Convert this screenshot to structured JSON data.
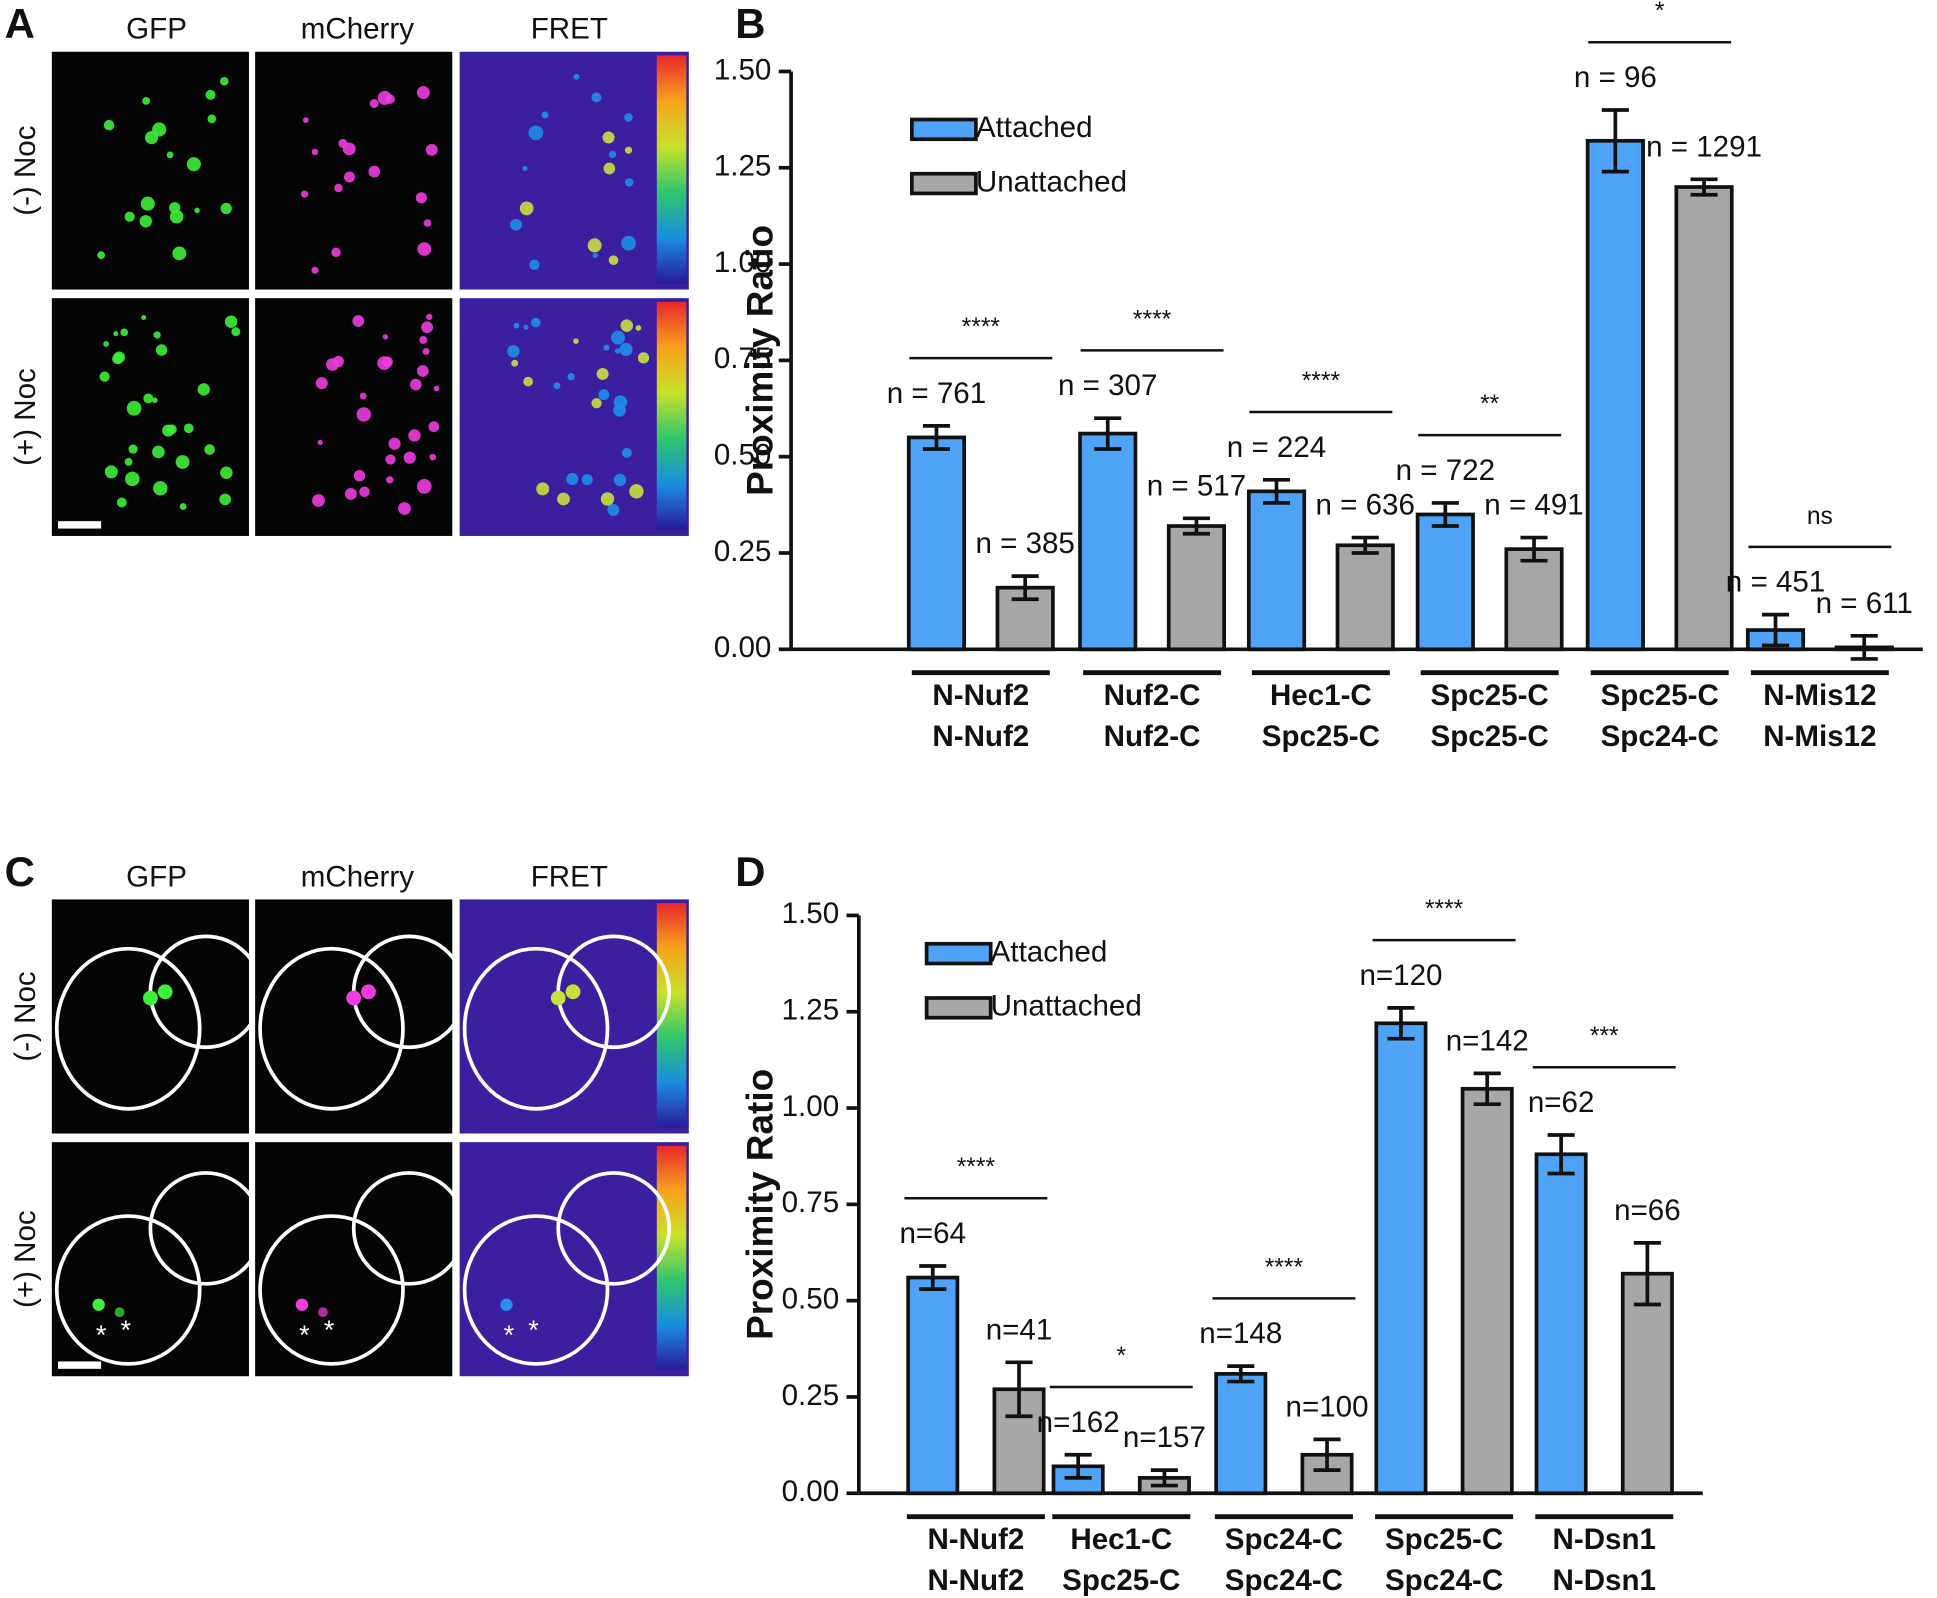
{
  "image_panels": [
    {
      "label": "A",
      "columns": [
        "GFP",
        "mCherry",
        "FRET"
      ],
      "rows": [
        "(-) Noc",
        "(+) Noc"
      ]
    },
    {
      "label": "C",
      "columns": [
        "GFP",
        "mCherry",
        "FRET"
      ],
      "rows": [
        "(-) Noc",
        "(+) Noc"
      ]
    }
  ],
  "chart_data": [
    {
      "type": "bar",
      "panel": "B",
      "ylabel": "Proximity Ratio",
      "categories": [
        [
          "N-Nuf2",
          "N-Nuf2"
        ],
        [
          "Nuf2-C",
          "Nuf2-C"
        ],
        [
          "Hec1-C",
          "Spc25-C"
        ],
        [
          "Spc25-C",
          "Spc25-C"
        ],
        [
          "Spc25-C",
          "Spc24-C"
        ],
        [
          "N-Mis12",
          "N-Mis12"
        ]
      ],
      "series": [
        {
          "name": "Attached",
          "color": "#4fa3f7",
          "values": [
            0.55,
            0.56,
            0.41,
            0.35,
            1.32,
            0.05
          ],
          "errors": [
            0.03,
            0.04,
            0.03,
            0.03,
            0.08,
            0.04
          ],
          "n_labels": [
            "n = 761",
            "n = 307",
            "n = 224",
            "n = 722",
            "n = 96",
            "n = 451"
          ]
        },
        {
          "name": "Unattached",
          "color": "#a7a7a7",
          "values": [
            0.16,
            0.32,
            0.27,
            0.26,
            1.2,
            0.005
          ],
          "errors": [
            0.03,
            0.02,
            0.02,
            0.03,
            0.02,
            0.03
          ],
          "n_labels": [
            "n = 385",
            "n = 517",
            "n = 636",
            "n = 491",
            "n = 1291",
            "n = 611"
          ]
        }
      ],
      "significance": [
        "****",
        "****",
        "****",
        "**",
        "*",
        "ns"
      ],
      "ylim": [
        0,
        1.5
      ],
      "yticks": [
        {
          "value": 0,
          "label": "0.00"
        },
        {
          "value": 0.25,
          "label": "0.25"
        },
        {
          "value": 0.5,
          "label": "0.50"
        },
        {
          "value": 0.75,
          "label": "0.75"
        },
        {
          "value": 1,
          "label": "1.00"
        },
        {
          "value": 1.25,
          "label": "1.25"
        },
        {
          "value": 1.5,
          "label": "1.50"
        }
      ],
      "legend": "upper left"
    },
    {
      "type": "bar",
      "panel": "D",
      "ylabel": "Proximity Ratio",
      "categories": [
        [
          "N-Nuf2",
          "N-Nuf2"
        ],
        [
          "Hec1-C",
          "Spc25-C"
        ],
        [
          "Spc24-C",
          "Spc24-C"
        ],
        [
          "Spc25-C",
          "Spc24-C"
        ],
        [
          "N-Dsn1",
          "N-Dsn1"
        ]
      ],
      "series": [
        {
          "name": "Attached",
          "color": "#4fa3f7",
          "values": [
            0.56,
            0.07,
            0.31,
            1.22,
            0.88
          ],
          "errors": [
            0.03,
            0.03,
            0.02,
            0.04,
            0.05
          ],
          "n_labels": [
            "n=64",
            "n=162",
            "n=148",
            "n=120",
            "n=62"
          ]
        },
        {
          "name": "Unattached",
          "color": "#a7a7a7",
          "values": [
            0.27,
            0.04,
            0.1,
            1.05,
            0.57
          ],
          "errors": [
            0.07,
            0.02,
            0.04,
            0.04,
            0.08
          ],
          "n_labels": [
            "n=41",
            "n=157",
            "n=100",
            "n=142",
            "n=66"
          ]
        }
      ],
      "significance": [
        "****",
        "*",
        "****",
        "****",
        "***"
      ],
      "ylim": [
        0,
        1.5
      ],
      "yticks": [
        {
          "value": 0,
          "label": "0.00"
        },
        {
          "value": 0.25,
          "label": "0.25"
        },
        {
          "value": 0.5,
          "label": "0.50"
        },
        {
          "value": 0.75,
          "label": "0.75"
        },
        {
          "value": 1,
          "label": "1.00"
        },
        {
          "value": 1.25,
          "label": "1.25"
        },
        {
          "value": 1.5,
          "label": "1.50"
        }
      ],
      "legend": "upper left"
    }
  ]
}
